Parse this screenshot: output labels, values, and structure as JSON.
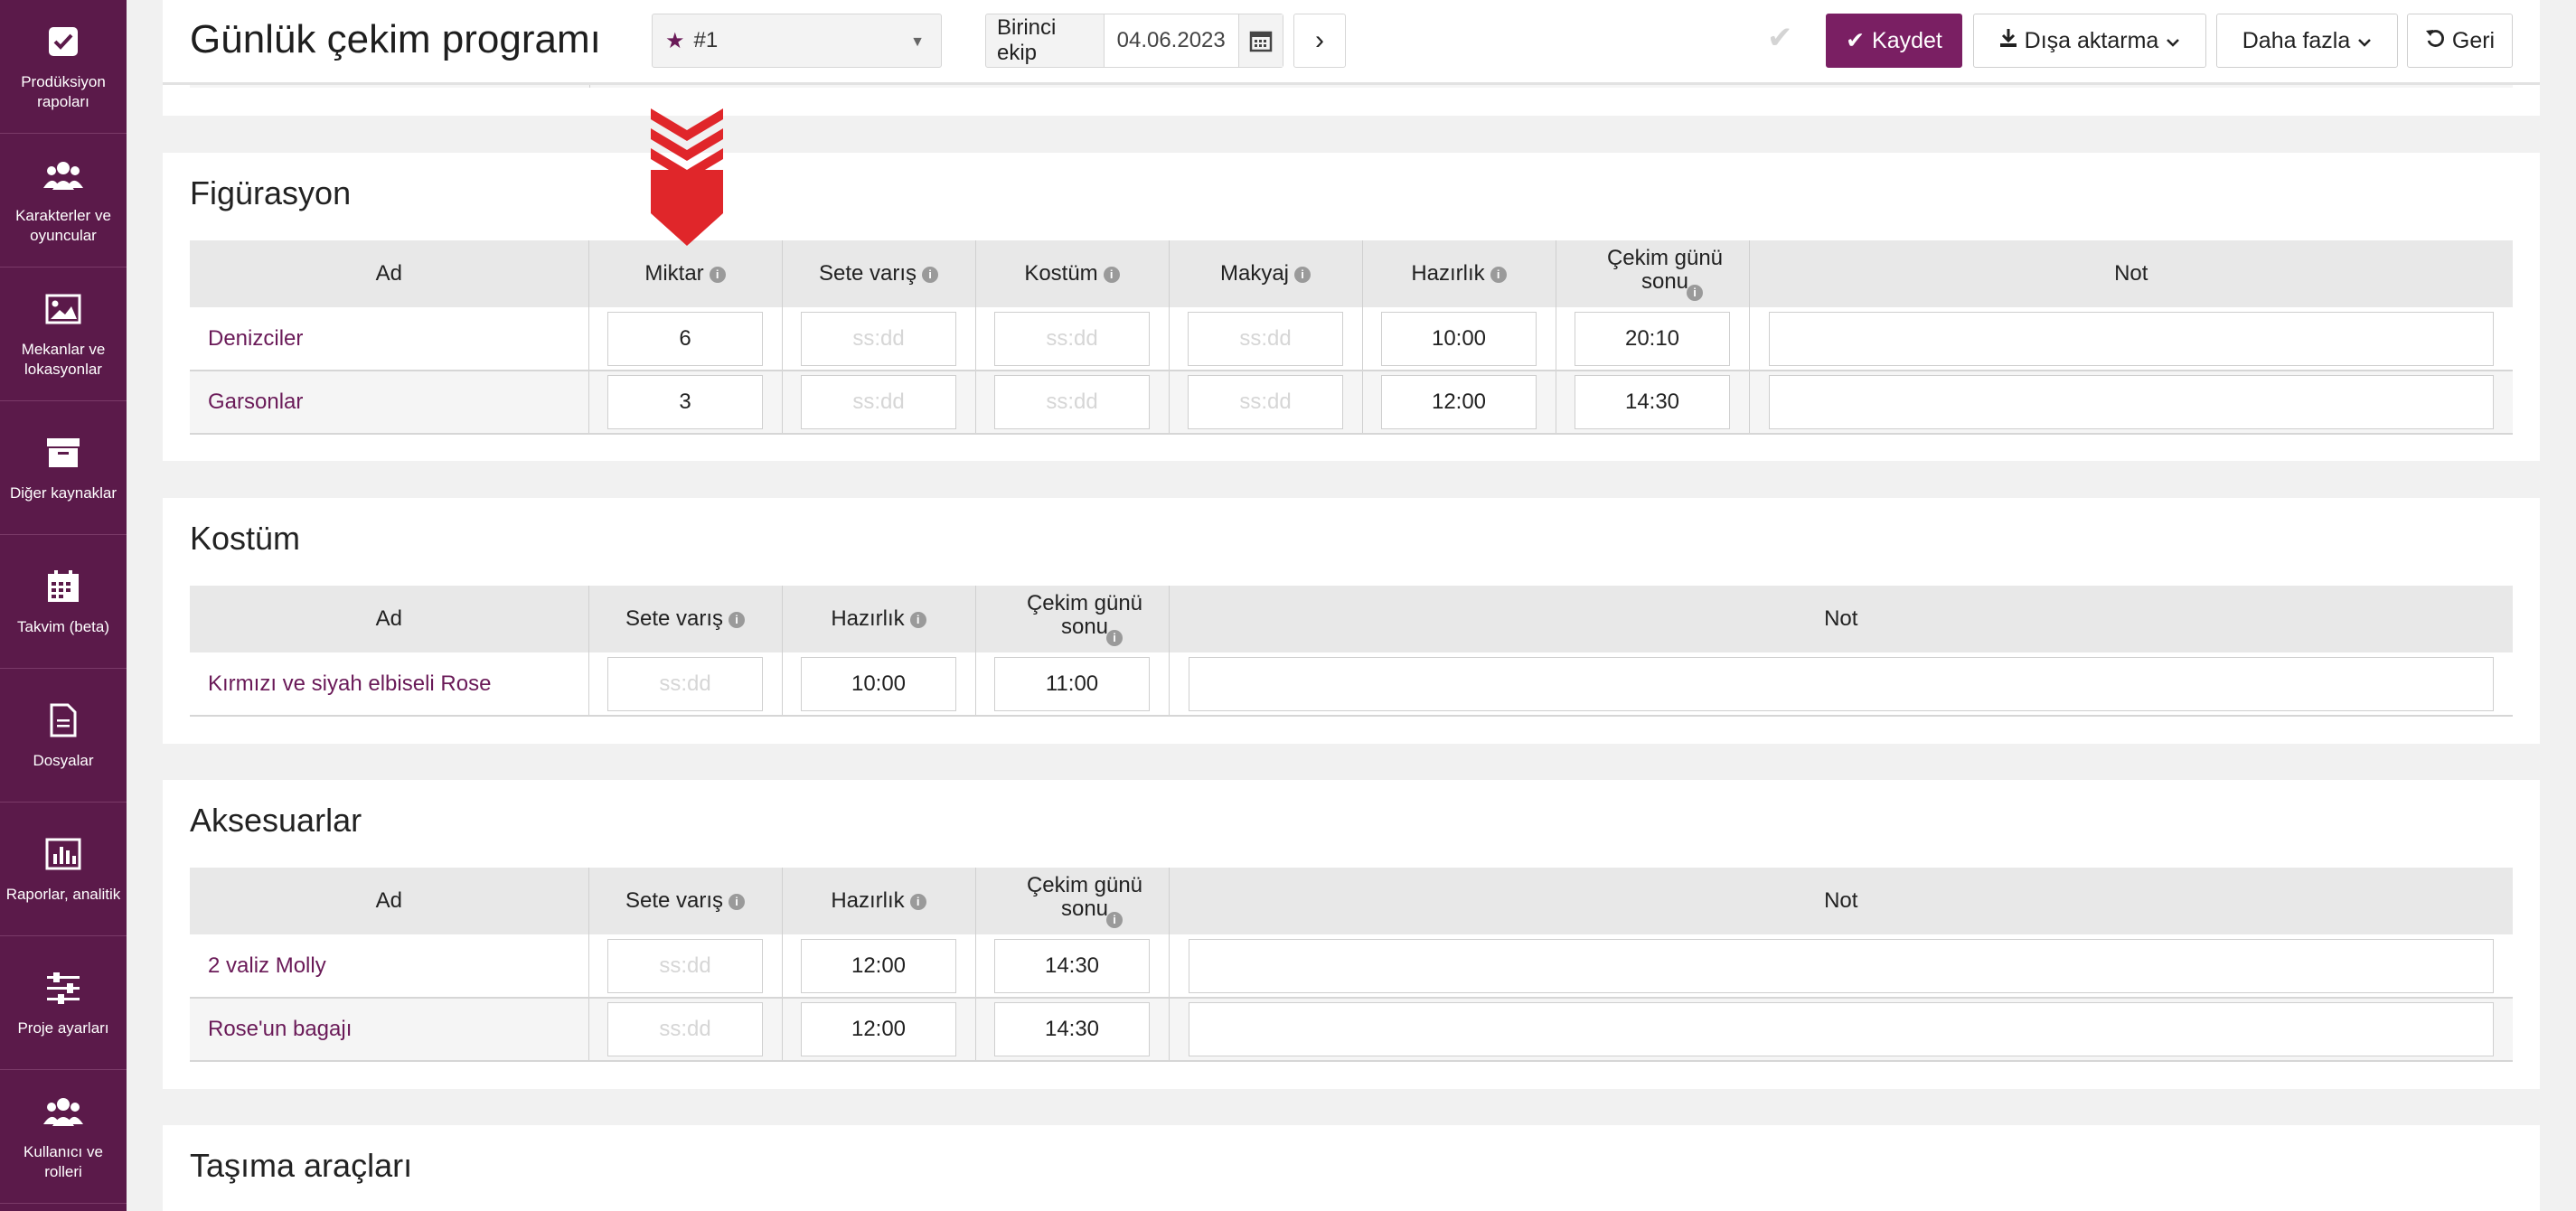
{
  "sidebar": {
    "items": [
      {
        "label": "Prodüksiyon\nrapoları",
        "icon": "checkbox-icon"
      },
      {
        "label": "Karakterler ve\noyuncular",
        "icon": "users-icon"
      },
      {
        "label": "Mekanlar ve\nlokasyonlar",
        "icon": "image-icon"
      },
      {
        "label": "Diğer kaynaklar",
        "icon": "archive-icon"
      },
      {
        "label": "Takvim (beta)",
        "icon": "calendar-icon"
      },
      {
        "label": "Dosyalar",
        "icon": "file-icon"
      },
      {
        "label": "Raporlar, analitik",
        "icon": "bar-chart-icon"
      },
      {
        "label": "Proje ayarları",
        "icon": "sliders-icon"
      },
      {
        "label": "Kullanıcı ve\nrolleri",
        "icon": "users-icon"
      }
    ]
  },
  "header": {
    "title": "Günlük çekim programı",
    "episode_select": "#1",
    "unit": "Birinci ekip",
    "date": "04.06.2023",
    "save_label": "Kaydet",
    "export_label": "Dışa aktarma",
    "more_label": "Daha fazla",
    "back_label": "Geri"
  },
  "colors": {
    "sidebar": "#5b1a4a",
    "accent": "#7a1f63",
    "link": "#6a1a58",
    "marker": "#e0262a"
  },
  "figuration": {
    "title": "Figürasyon",
    "headers": [
      "Ad",
      "Miktar",
      "Sete varış",
      "Kostüm",
      "Makyaj",
      "Hazırlık",
      "Çekim günü sonu",
      "Not"
    ],
    "placeholder": "ss:dd",
    "rows": [
      {
        "name": "Denizciler",
        "amount": "6",
        "arrival": "",
        "costume": "",
        "makeup": "",
        "prep": "10:00",
        "end": "20:10",
        "note": ""
      },
      {
        "name": "Garsonlar",
        "amount": "3",
        "arrival": "",
        "costume": "",
        "makeup": "",
        "prep": "12:00",
        "end": "14:30",
        "note": ""
      }
    ]
  },
  "costume": {
    "title": "Kostüm",
    "headers": [
      "Ad",
      "Sete varış",
      "Hazırlık",
      "Çekim günü sonu",
      "Not"
    ],
    "placeholder": "ss:dd",
    "rows": [
      {
        "name": "Kırmızı ve siyah elbiseli Rose",
        "arrival": "",
        "prep": "10:00",
        "end": "11:00",
        "note": ""
      }
    ]
  },
  "props": {
    "title": "Aksesuarlar",
    "headers": [
      "Ad",
      "Sete varış",
      "Hazırlık",
      "Çekim günü sonu",
      "Not"
    ],
    "placeholder": "ss:dd",
    "rows": [
      {
        "name": "2 valiz Molly",
        "arrival": "",
        "prep": "12:00",
        "end": "14:30",
        "note": ""
      },
      {
        "name": "Rose'un bagajı",
        "arrival": "",
        "prep": "12:00",
        "end": "14:30",
        "note": ""
      }
    ]
  },
  "vehicles": {
    "title": "Taşıma araçları"
  }
}
